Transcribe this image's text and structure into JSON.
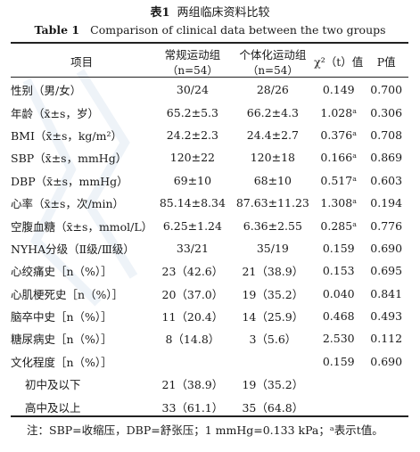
{
  "title": {
    "zh_lead": "表1",
    "zh_text": "两组临床资料比较",
    "en_lead": "Table 1",
    "en_text": "Comparison of clinical data between the two groups"
  },
  "headers": {
    "item": "项目",
    "group1": "常规运动组",
    "group1_n": "（n=54）",
    "group2": "个体化运动组",
    "group2_n": "（n=54）",
    "stat": "χ²（t）值",
    "p": "P值"
  },
  "rows": [
    {
      "label": "性别（男/女）",
      "g1": "30/24",
      "g2": "28/26",
      "stat": "0.149",
      "p": "0.700"
    },
    {
      "label": "年龄（x̄±s，岁）",
      "g1": "65.2±5.3",
      "g2": "66.2±4.3",
      "stat": "1.028ᵃ",
      "p": "0.306"
    },
    {
      "label": "BMI（x̄±s，kg/m²）",
      "g1": "24.2±2.3",
      "g2": "24.4±2.7",
      "stat": "0.376ᵃ",
      "p": "0.708"
    },
    {
      "label": "SBP（x̄±s，mmHg）",
      "g1": "120±22",
      "g2": "120±18",
      "stat": "0.166ᵃ",
      "p": "0.869"
    },
    {
      "label": "DBP（x̄±s，mmHg）",
      "g1": "69±10",
      "g2": "68±10",
      "stat": "0.517ᵃ",
      "p": "0.603"
    },
    {
      "label": "心率（x̄±s，次/min）",
      "g1": "85.14±8.34",
      "g2": "87.63±11.23",
      "stat": "1.308ᵃ",
      "p": "0.194"
    },
    {
      "label": "空腹血糖（x̄±s，mmol/L）",
      "g1": "6.25±1.24",
      "g2": "6.36±2.55",
      "stat": "0.285ᵃ",
      "p": "0.776"
    },
    {
      "label": "NYHA分级（Ⅱ级/Ⅲ级）",
      "g1": "33/21",
      "g2": "35/19",
      "stat": "0.159",
      "p": "0.690"
    },
    {
      "label": "心绞痛史［n（%）］",
      "g1": "23（42.6）",
      "g2": "21（38.9）",
      "stat": "0.153",
      "p": "0.695"
    },
    {
      "label": "心肌梗死史［n（%）］",
      "g1": "20（37.0）",
      "g2": "19（35.2）",
      "stat": "0.040",
      "p": "0.841"
    },
    {
      "label": "脑卒中史［n（%）］",
      "g1": "11（20.4）",
      "g2": "14（25.9）",
      "stat": "0.468",
      "p": "0.493"
    },
    {
      "label": "糖尿病史［n（%）］",
      "g1": "8（14.8）",
      "g2": "3（5.6）",
      "stat": "2.530",
      "p": "0.112"
    },
    {
      "label": "文化程度［n（%）］",
      "g1": "",
      "g2": "",
      "stat": "0.159",
      "p": "0.690"
    },
    {
      "label": "初中及以下",
      "g1": "21（38.9）",
      "g2": "19（35.2）",
      "stat": "",
      "p": ""
    },
    {
      "label": "高中及以上",
      "g1": "33（61.1）",
      "g2": "35（64.8）",
      "stat": "",
      "p": ""
    }
  ],
  "note": "注：SBP=收缩压，DBP=舒张压；1 mmHg=0.133 kPa；ᵃ表示t值。"
}
